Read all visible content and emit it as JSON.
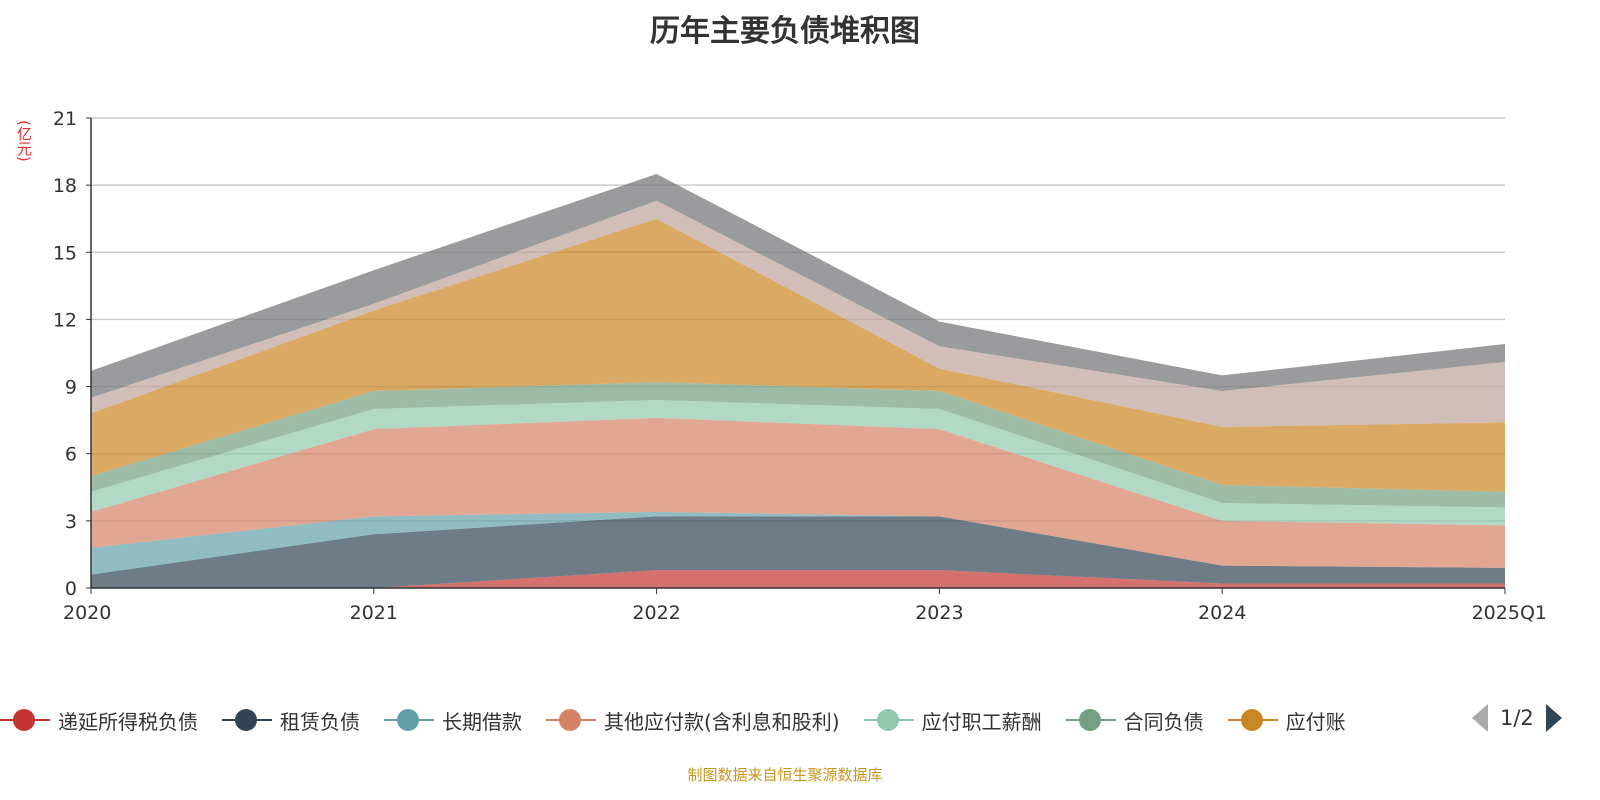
{
  "chart_data": {
    "type": "area",
    "stacked": true,
    "title": "历年主要负债堆积图",
    "ylabel": "(亿元)",
    "categories": [
      "2020",
      "2021",
      "2022",
      "2023",
      "2024",
      "2025Q1"
    ],
    "ylim": [
      0,
      21
    ],
    "yticks": [
      0,
      3,
      6,
      9,
      12,
      15,
      18,
      21
    ],
    "grid": true,
    "legend_position": "bottom",
    "series": [
      {
        "name": "递延所得税负债",
        "color": "#c23531",
        "values": [
          0,
          0,
          0.8,
          0.8,
          0.2,
          0.2
        ]
      },
      {
        "name": "租赁负债",
        "color": "#2f4554",
        "values": [
          0.6,
          2.4,
          2.4,
          2.4,
          0.8,
          0.7
        ]
      },
      {
        "name": "长期借款",
        "color": "#61a0a8",
        "values": [
          1.2,
          0.8,
          0.2,
          0,
          0,
          0
        ]
      },
      {
        "name": "其他应付款(含利息和股利)",
        "color": "#d48265",
        "values": [
          1.6,
          3.9,
          4.2,
          3.9,
          2.0,
          1.9
        ]
      },
      {
        "name": "应付职工薪酬",
        "color": "#91c7ae",
        "values": [
          0.9,
          0.9,
          0.8,
          0.9,
          0.8,
          0.8
        ]
      },
      {
        "name": "合同负债",
        "color": "#749f83",
        "values": [
          0.7,
          0.8,
          0.8,
          0.8,
          0.8,
          0.7
        ]
      },
      {
        "name": "应付账",
        "color": "#ca8622",
        "values": [
          2.8,
          3.6,
          7.3,
          1.0,
          2.6,
          3.1
        ]
      },
      {
        "color": "#bda29a",
        "values": [
          0.7,
          0.3,
          0.8,
          1.0,
          1.6,
          2.7
        ]
      },
      {
        "color": "#6e7074",
        "values": [
          1.2,
          1.5,
          1.2,
          1.1,
          0.7,
          0.8
        ]
      }
    ]
  },
  "legend": {
    "page": "1/2",
    "visible_count": 7
  },
  "source": "制图数据来自恒生聚源数据库"
}
